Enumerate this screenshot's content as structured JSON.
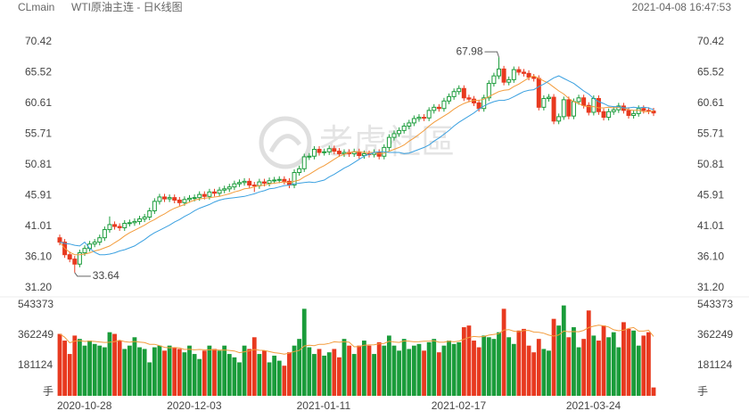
{
  "chart_data": {
    "type": "candlestick",
    "symbol": "CLmain",
    "title": "WTI原油主连 - 日K线图",
    "timestamp": "2021-04-08 16:47:53",
    "watermark": "老虎社區",
    "categories": [
      "2020-10-28",
      null,
      null,
      null,
      null,
      null,
      null,
      null,
      null,
      null,
      null,
      null,
      null,
      null,
      null,
      null,
      null,
      null,
      null,
      null,
      null,
      null,
      "2020-12-03",
      null,
      null,
      null,
      null,
      null,
      null,
      null,
      null,
      null,
      null,
      null,
      null,
      null,
      null,
      null,
      null,
      null,
      null,
      null,
      null,
      null,
      null,
      null,
      null,
      null,
      "2021-01-11",
      null,
      null,
      null,
      null,
      null,
      null,
      null,
      null,
      null,
      null,
      null,
      null,
      null,
      null,
      null,
      null,
      null,
      null,
      null,
      null,
      null,
      null,
      null,
      null,
      null,
      null,
      "2021-02-17",
      null,
      null,
      null,
      null,
      null,
      null,
      null,
      null,
      null,
      null,
      null,
      null,
      null,
      null,
      null,
      null,
      null,
      null,
      null,
      null,
      null,
      null,
      null,
      null,
      null,
      null,
      "2021-03-24",
      null,
      null,
      null,
      null,
      null,
      null,
      null,
      null,
      null,
      null,
      null,
      null,
      null,
      null,
      null,
      null,
      null
    ],
    "open": [
      39.2,
      38.5,
      36.5,
      35.8,
      35.0,
      36.8,
      37.5,
      38.2,
      38.5,
      39.2,
      40.5,
      41.3,
      41.0,
      40.8,
      41.5,
      41.6,
      41.8,
      42.2,
      42.5,
      43.5,
      45.0,
      45.7,
      45.4,
      45.6,
      45.2,
      44.8,
      45.3,
      45.5,
      45.6,
      46.1,
      45.8,
      46.5,
      46.3,
      46.8,
      47.0,
      47.3,
      47.8,
      48.0,
      48.2,
      47.6,
      47.5,
      48.1,
      47.9,
      48.3,
      48.4,
      48.5,
      48.2,
      47.6,
      49.6,
      50.2,
      52.1,
      52.2,
      53.3,
      52.8,
      52.9,
      53.4,
      53.0,
      52.6,
      52.8,
      52.6,
      52.9,
      52.3,
      52.6,
      52.5,
      52.8,
      52.2,
      53.6,
      55.2,
      55.8,
      56.3,
      57.0,
      57.5,
      58.2,
      58.4,
      58.3,
      59.5,
      60.0,
      59.8,
      61.0,
      61.7,
      62.5,
      63.0,
      61.5,
      61.3,
      60.7,
      59.8,
      61.5,
      63.8,
      65.0,
      66.1,
      64.0,
      64.4,
      66.0,
      65.6,
      65.4,
      64.8,
      64.6,
      60.0,
      61.4,
      61.6,
      57.8,
      58.5,
      61.2,
      58.6,
      60.9,
      61.5,
      60.3,
      59.2,
      61.4,
      59.3,
      58.4,
      59.3,
      59.6,
      60.2,
      59.5,
      58.7,
      59.0,
      59.8,
      59.5,
      59.4
    ],
    "high": [
      39.7,
      39.0,
      37.0,
      36.3,
      37.3,
      38.0,
      38.7,
      39.0,
      39.7,
      41.0,
      42.6,
      41.8,
      41.5,
      42.0,
      42.1,
      42.3,
      42.7,
      43.0,
      44.0,
      45.5,
      46.2,
      46.2,
      46.1,
      46.1,
      45.7,
      45.8,
      46.0,
      46.1,
      46.6,
      46.6,
      47.0,
      47.0,
      47.3,
      47.5,
      47.8,
      48.3,
      48.5,
      48.7,
      48.7,
      48.1,
      48.6,
      48.6,
      48.8,
      48.9,
      49.0,
      49.0,
      48.7,
      50.1,
      50.7,
      52.6,
      52.7,
      53.8,
      53.8,
      53.4,
      53.9,
      53.9,
      53.5,
      53.3,
      53.3,
      53.4,
      53.4,
      53.1,
      53.1,
      53.3,
      53.3,
      54.1,
      55.7,
      56.3,
      56.8,
      57.5,
      58.0,
      58.7,
      58.9,
      58.9,
      60.0,
      60.5,
      60.5,
      61.5,
      62.2,
      63.0,
      63.5,
      63.5,
      62.0,
      61.8,
      61.2,
      62.0,
      64.3,
      65.5,
      67.98,
      66.6,
      64.9,
      66.5,
      66.5,
      66.1,
      65.9,
      65.3,
      65.1,
      61.9,
      62.1,
      62.1,
      59.0,
      61.7,
      61.7,
      61.4,
      62.0,
      62.0,
      60.8,
      61.9,
      61.9,
      59.8,
      59.8,
      60.1,
      60.7,
      60.7,
      60.0,
      59.5,
      60.3,
      60.3,
      60.0,
      59.9
    ],
    "low": [
      38.0,
      36.0,
      35.3,
      33.64,
      34.5,
      36.3,
      37.0,
      37.7,
      38.0,
      38.7,
      40.0,
      40.5,
      40.3,
      40.3,
      41.0,
      41.1,
      41.3,
      41.7,
      42.0,
      43.0,
      44.5,
      44.9,
      44.9,
      44.7,
      44.3,
      44.3,
      44.8,
      45.0,
      45.1,
      45.3,
      45.3,
      45.8,
      45.8,
      46.3,
      46.5,
      46.8,
      47.3,
      47.5,
      47.1,
      46.5,
      47.0,
      47.4,
      47.4,
      47.8,
      47.9,
      47.7,
      47.1,
      47.1,
      49.1,
      49.7,
      51.6,
      51.7,
      52.3,
      52.3,
      52.4,
      52.5,
      52.1,
      52.1,
      52.1,
      52.1,
      51.8,
      51.8,
      52.0,
      52.0,
      51.7,
      51.7,
      53.1,
      54.7,
      55.3,
      55.8,
      56.5,
      57.0,
      57.7,
      57.8,
      57.8,
      59.0,
      59.3,
      59.3,
      60.5,
      61.2,
      62.0,
      61.0,
      60.8,
      60.2,
      59.3,
      59.3,
      61.0,
      63.3,
      64.5,
      63.5,
      63.5,
      63.9,
      65.1,
      64.9,
      64.3,
      64.1,
      59.5,
      59.5,
      60.9,
      57.3,
      57.3,
      58.0,
      58.1,
      58.1,
      60.4,
      59.8,
      58.7,
      58.7,
      58.8,
      57.9,
      57.9,
      58.8,
      59.1,
      59.0,
      58.2,
      58.2,
      58.5,
      59.0,
      58.9,
      58.6
    ],
    "close": [
      38.5,
      36.5,
      35.8,
      35.0,
      36.8,
      37.5,
      38.2,
      38.5,
      39.2,
      40.5,
      41.3,
      41.0,
      40.8,
      41.5,
      41.6,
      41.8,
      42.2,
      42.5,
      43.5,
      45.0,
      45.7,
      45.4,
      45.6,
      45.2,
      44.8,
      45.3,
      45.5,
      45.6,
      46.1,
      45.8,
      46.5,
      46.3,
      46.8,
      47.0,
      47.3,
      47.8,
      48.0,
      48.2,
      47.6,
      47.5,
      48.1,
      47.9,
      48.3,
      48.4,
      48.5,
      48.2,
      47.6,
      49.6,
      50.2,
      52.1,
      52.2,
      53.3,
      52.8,
      52.9,
      53.4,
      53.0,
      52.6,
      52.8,
      52.6,
      52.9,
      52.3,
      52.6,
      52.5,
      52.8,
      52.2,
      53.6,
      55.2,
      55.8,
      56.3,
      57.0,
      57.5,
      58.2,
      58.4,
      58.3,
      59.5,
      60.0,
      59.8,
      61.0,
      61.7,
      62.5,
      63.0,
      61.5,
      61.3,
      60.7,
      59.8,
      61.5,
      63.8,
      65.0,
      66.1,
      64.0,
      64.4,
      66.0,
      65.6,
      65.4,
      64.8,
      64.6,
      60.0,
      61.4,
      61.6,
      57.8,
      58.5,
      61.2,
      58.6,
      60.9,
      61.5,
      60.3,
      59.2,
      61.4,
      59.3,
      58.4,
      59.3,
      59.6,
      60.2,
      59.5,
      58.7,
      59.0,
      59.8,
      59.5,
      59.4,
      59.1
    ],
    "up_color": "#1a9c3a",
    "down_color": "#e8391f",
    "ylim": [
      31.2,
      70.42
    ],
    "yticks": [
      {
        "value": 31.2,
        "label": "31.20"
      },
      {
        "value": 36.1,
        "label": "36.10"
      },
      41.01,
      45.91,
      50.81,
      55.71,
      60.61,
      65.52,
      70.42
    ],
    "grid": false,
    "ma_lines": [
      {
        "color": "#f39c3c",
        "values": [
          38.5,
          37.5,
          36.9,
          36.5,
          36.5,
          36.6,
          36.8,
          37.1,
          37.3,
          37.6,
          37.9,
          38.4,
          38.9,
          39.5,
          40.0,
          40.4,
          40.8,
          41.2,
          41.7,
          42.1,
          42.6,
          43.0,
          43.5,
          43.9,
          44.2,
          44.5,
          44.9,
          45.2,
          45.4,
          45.5,
          45.6,
          45.7,
          45.8,
          46.0,
          46.2,
          46.5,
          46.7,
          47.0,
          47.1,
          47.3,
          47.5,
          47.6,
          47.8,
          47.9,
          48.0,
          48.1,
          48.0,
          48.2,
          48.4,
          48.9,
          49.3,
          49.8,
          50.3,
          50.7,
          51.2,
          51.7,
          52.2,
          52.5,
          52.8,
          52.9,
          52.9,
          52.8,
          52.8,
          52.8,
          52.6,
          52.7,
          53.0,
          53.3,
          53.6,
          54.0,
          54.6,
          55.1,
          55.7,
          56.3,
          57.0,
          57.6,
          58.1,
          58.6,
          59.1,
          59.7,
          60.2,
          60.6,
          60.9,
          61.1,
          61.1,
          61.3,
          61.7,
          62.1,
          62.5,
          62.7,
          62.8,
          63.3,
          63.7,
          64.2,
          64.7,
          65.0,
          64.6,
          64.2,
          63.8,
          63.2,
          62.6,
          62.1,
          61.4,
          60.9,
          60.6,
          60.2,
          60.1,
          60.1,
          59.9,
          59.9,
          60.0,
          59.9,
          60.0,
          59.9,
          59.6,
          59.5,
          59.5,
          59.3,
          59.3,
          59.4
        ]
      },
      {
        "color": "#3aa0e0",
        "values": [
          38.5,
          38.3,
          38.2,
          38.0,
          37.9,
          38.5,
          37.5,
          36.9,
          36.5,
          36.5,
          36.6,
          36.8,
          37.1,
          37.3,
          37.6,
          37.9,
          38.4,
          38.9,
          39.5,
          40.0,
          40.4,
          40.8,
          41.2,
          41.7,
          42.1,
          42.6,
          43.0,
          43.5,
          43.9,
          44.2,
          44.5,
          44.9,
          45.2,
          45.4,
          45.5,
          45.6,
          45.7,
          45.8,
          46.0,
          46.2,
          46.5,
          46.7,
          47.0,
          47.1,
          47.3,
          47.5,
          47.6,
          47.8,
          47.9,
          48.0,
          48.1,
          48.0,
          48.2,
          48.4,
          48.9,
          49.3,
          49.8,
          50.3,
          50.7,
          51.2,
          51.7,
          52.2,
          52.5,
          52.8,
          52.9,
          52.9,
          52.8,
          52.8,
          52.8,
          52.6,
          52.7,
          53.0,
          53.3,
          53.6,
          54.0,
          54.6,
          55.1,
          55.7,
          56.3,
          57.0,
          57.6,
          58.1,
          58.6,
          59.1,
          59.7,
          60.2,
          60.6,
          60.9,
          61.1,
          61.1,
          61.3,
          61.7,
          62.1,
          62.5,
          62.7,
          62.8,
          63.3,
          63.7,
          64.2,
          64.7,
          65.0,
          64.6,
          64.2,
          63.8,
          63.2,
          62.6,
          62.1,
          61.4,
          60.9,
          60.6,
          60.2,
          60.1,
          60.1,
          59.9,
          59.9,
          60.0,
          59.9,
          60.0,
          59.9,
          59.6
        ]
      }
    ],
    "volume": {
      "values": [
        370000,
        330000,
        250000,
        360000,
        340000,
        300000,
        330000,
        310000,
        300000,
        290000,
        380000,
        370000,
        330000,
        280000,
        300000,
        350000,
        290000,
        280000,
        200000,
        290000,
        300000,
        270000,
        300000,
        290000,
        280000,
        260000,
        300000,
        250000,
        220000,
        270000,
        300000,
        280000,
        270000,
        300000,
        250000,
        230000,
        200000,
        300000,
        280000,
        350000,
        250000,
        270000,
        200000,
        240000,
        210000,
        180000,
        260000,
        300000,
        340000,
        520000,
        290000,
        250000,
        280000,
        240000,
        260000,
        280000,
        230000,
        340000,
        300000,
        250000,
        300000,
        330000,
        300000,
        250000,
        320000,
        300000,
        360000,
        300000,
        270000,
        340000,
        280000,
        300000,
        310000,
        270000,
        320000,
        340000,
        260000,
        300000,
        330000,
        310000,
        320000,
        410000,
        420000,
        330000,
        290000,
        360000,
        350000,
        340000,
        380000,
        520000,
        350000,
        310000,
        390000,
        400000,
        300000,
        260000,
        340000,
        280000,
        270000,
        460000,
        420000,
        540000,
        350000,
        410000,
        290000,
        340000,
        510000,
        360000,
        330000,
        420000,
        350000,
        380000,
        290000,
        440000,
        400000,
        390000,
        300000,
        360000,
        380000,
        50000
      ],
      "ylim": [
        0,
        543373
      ],
      "yticks": [
        181124,
        362249,
        543373
      ],
      "unit": "手",
      "ma_lines": [
        {
          "color": "#f39c3c",
          "values": [
            370000,
            350000,
            317000,
            327000,
            330000,
            325000,
            327000,
            325000,
            322000,
            319000,
            320000,
            324000,
            332000,
            324000,
            320000,
            325000,
            321000,
            318000,
            308000,
            308000,
            300000,
            290000,
            287000,
            288000,
            286000,
            277000,
            278000,
            275000,
            277000,
            275000,
            275000,
            276000,
            273000,
            274000,
            271000,
            268000,
            258000,
            263000,
            269000,
            277000,
            272000,
            271000,
            264000,
            258000,
            254000,
            249000,
            255000,
            265000,
            271000,
            298000,
            302000,
            300000,
            308000,
            308000,
            313000,
            323000,
            320000,
            324000,
            320000,
            293000,
            294000,
            302000,
            304000,
            305000,
            311000,
            313000,
            326000,
            322000,
            319000,
            328000,
            326000,
            323000,
            324000,
            326000,
            326000,
            330000,
            320000,
            320000,
            326000,
            323000,
            327000,
            338000,
            349000,
            355000,
            352000,
            354000,
            363000,
            367000,
            372000,
            393000,
            396000,
            386000,
            383000,
            390000,
            391000,
            381000,
            380000,
            374000,
            363000,
            357000,
            364000,
            387000,
            383000,
            384000,
            383000,
            391000,
            408000,
            416000,
            422000,
            418000,
            411000,
            395000,
            389000,
            392000,
            403000,
            408000,
            387000,
            387000,
            392000,
            355000
          ]
        }
      ]
    }
  }
}
